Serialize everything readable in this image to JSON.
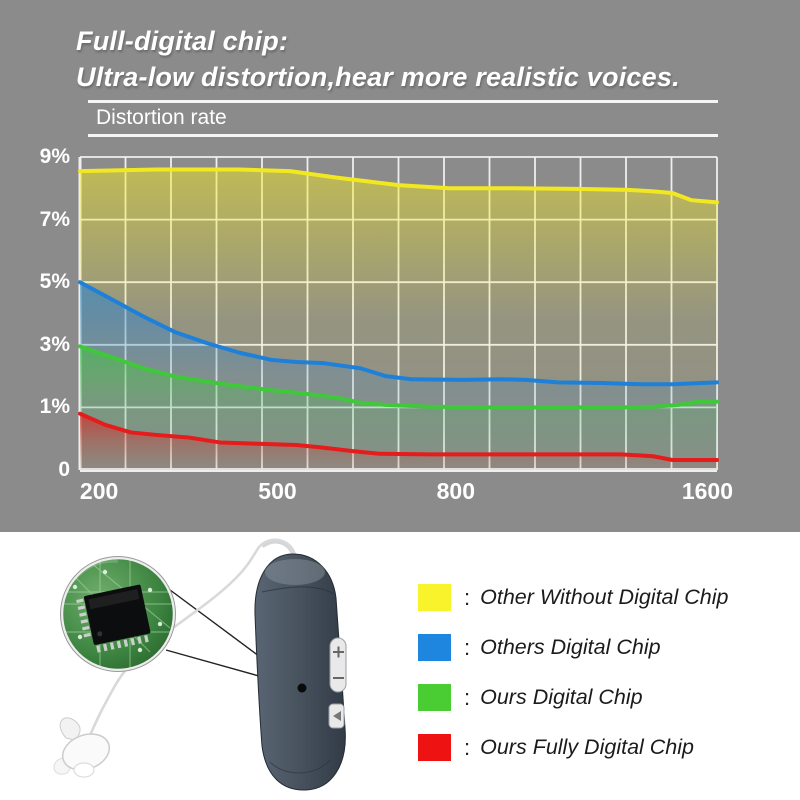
{
  "header": {
    "line1": "Full-digital chip:",
    "line2": "Ultra-low distortion,hear more realistic voices."
  },
  "chart_data": {
    "type": "area",
    "title": "Distortion rate",
    "xlabel": "",
    "ylabel": "Distortion rate (%)",
    "ylim": [
      0,
      9
    ],
    "grid": true,
    "legend_position": "bottom-right",
    "yticks": [
      {
        "label": "9%",
        "value": 9
      },
      {
        "label": "7%",
        "value": 7
      },
      {
        "label": "5%",
        "value": 5
      },
      {
        "label": "3%",
        "value": 3
      },
      {
        "label": "1%",
        "value": 1
      },
      {
        "label": "0",
        "value": 0
      }
    ],
    "xticks": [
      {
        "label": "200",
        "f": 0.03
      },
      {
        "label": "500",
        "f": 0.31
      },
      {
        "label": "800",
        "f": 0.59
      },
      {
        "label": "1600",
        "f": 0.985
      }
    ],
    "series": [
      {
        "name": "Other Without Digital Chip",
        "color": "#f2e822",
        "points": [
          [
            0,
            8.55
          ],
          [
            0.12,
            8.6
          ],
          [
            0.25,
            8.6
          ],
          [
            0.33,
            8.55
          ],
          [
            0.4,
            8.35
          ],
          [
            0.5,
            8.1
          ],
          [
            0.58,
            8.0
          ],
          [
            0.68,
            8.0
          ],
          [
            0.78,
            7.98
          ],
          [
            0.86,
            7.95
          ],
          [
            0.9,
            7.9
          ],
          [
            0.93,
            7.85
          ],
          [
            0.96,
            7.62
          ],
          [
            1,
            7.55
          ]
        ]
      },
      {
        "name": "Others Digital Chip",
        "color": "#1e80d8",
        "points": [
          [
            0,
            5.0
          ],
          [
            0.05,
            4.45
          ],
          [
            0.1,
            3.9
          ],
          [
            0.15,
            3.4
          ],
          [
            0.2,
            3.05
          ],
          [
            0.25,
            2.75
          ],
          [
            0.3,
            2.52
          ],
          [
            0.34,
            2.45
          ],
          [
            0.38,
            2.42
          ],
          [
            0.44,
            2.25
          ],
          [
            0.48,
            2.0
          ],
          [
            0.52,
            1.9
          ],
          [
            0.6,
            1.88
          ],
          [
            0.66,
            1.9
          ],
          [
            0.7,
            1.88
          ],
          [
            0.75,
            1.8
          ],
          [
            0.82,
            1.78
          ],
          [
            0.88,
            1.74
          ],
          [
            0.93,
            1.74
          ],
          [
            1,
            1.8
          ]
        ]
      },
      {
        "name": "Ours Digital Chip",
        "color": "#3fc93a",
        "points": [
          [
            0,
            2.95
          ],
          [
            0.05,
            2.6
          ],
          [
            0.1,
            2.25
          ],
          [
            0.15,
            1.98
          ],
          [
            0.2,
            1.82
          ],
          [
            0.25,
            1.68
          ],
          [
            0.3,
            1.55
          ],
          [
            0.35,
            1.45
          ],
          [
            0.4,
            1.32
          ],
          [
            0.44,
            1.15
          ],
          [
            0.48,
            1.08
          ],
          [
            0.55,
            1.02
          ],
          [
            0.65,
            1.0
          ],
          [
            0.75,
            1.0
          ],
          [
            0.85,
            1.0
          ],
          [
            0.9,
            1.02
          ],
          [
            0.94,
            1.08
          ],
          [
            0.97,
            1.18
          ],
          [
            1,
            1.18
          ]
        ]
      },
      {
        "name": "Ours Fully Digital Chip",
        "color": "#e51c1c",
        "points": [
          [
            0,
            0.9
          ],
          [
            0.04,
            0.72
          ],
          [
            0.08,
            0.6
          ],
          [
            0.12,
            0.56
          ],
          [
            0.17,
            0.52
          ],
          [
            0.22,
            0.44
          ],
          [
            0.28,
            0.42
          ],
          [
            0.34,
            0.4
          ],
          [
            0.38,
            0.36
          ],
          [
            0.43,
            0.3
          ],
          [
            0.47,
            0.26
          ],
          [
            0.55,
            0.25
          ],
          [
            0.65,
            0.25
          ],
          [
            0.75,
            0.25
          ],
          [
            0.85,
            0.25
          ],
          [
            0.9,
            0.22
          ],
          [
            0.93,
            0.16
          ],
          [
            1,
            0.16
          ]
        ]
      }
    ]
  },
  "legend": {
    "separator": ":",
    "items": [
      {
        "label": "Other Without Digital Chip",
        "color": "#f8f32b"
      },
      {
        "label": "Others Digital Chip",
        "color": "#1f86e0"
      },
      {
        "label": "Ours Digital Chip",
        "color": "#49cd33"
      },
      {
        "label": "Ours Fully Digital Chip",
        "color": "#ef1212"
      }
    ]
  }
}
